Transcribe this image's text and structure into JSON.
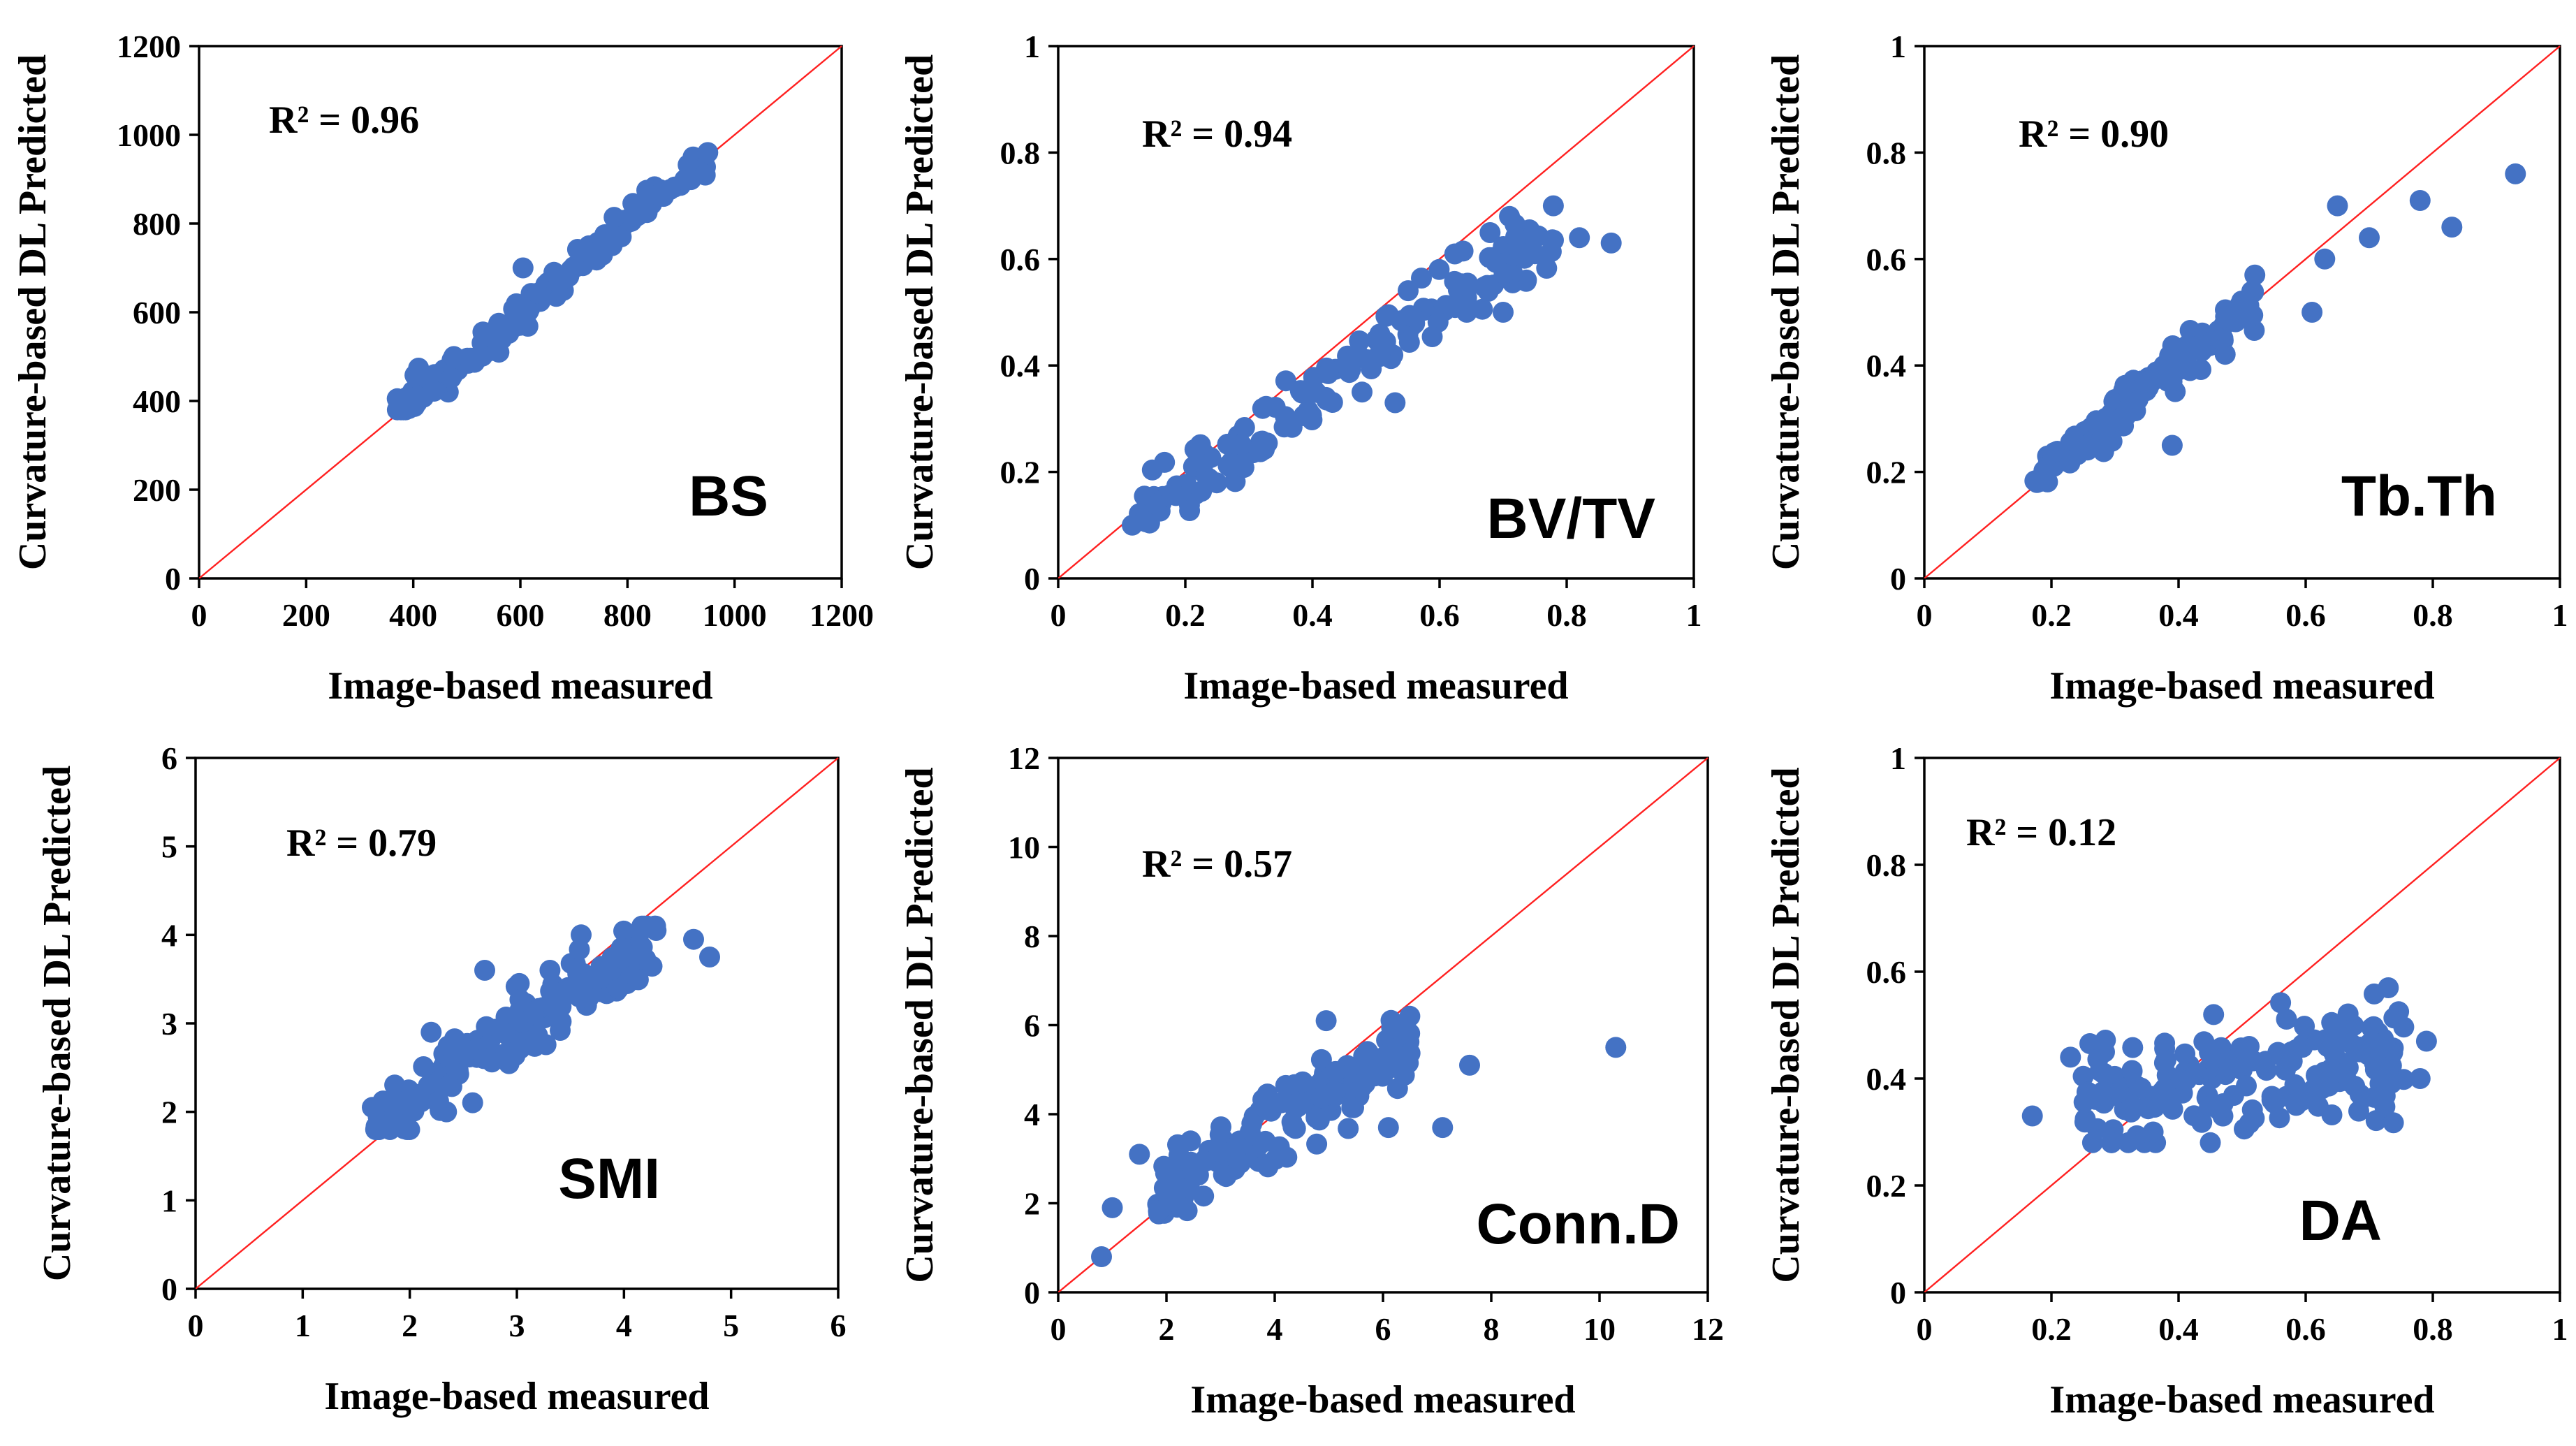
{
  "colors": {
    "points": "#4472c4",
    "reference_line": "#ff2020",
    "axes": "#000000"
  },
  "chart_data": [
    {
      "id": "bs",
      "type": "scatter",
      "panel_label": "BS",
      "r2_label": "R² = 0.96",
      "xlabel": "Image-based measured",
      "ylabel": "Curvature-based DL Predicted",
      "xlim": [
        0,
        1200
      ],
      "ylim": [
        0,
        1200
      ],
      "xticks": [
        "0",
        "200",
        "400",
        "600",
        "800",
        "1000",
        "1200"
      ],
      "yticks": [
        "0",
        "200",
        "400",
        "600",
        "800",
        "1000",
        "1200"
      ],
      "gen": {
        "n": 150,
        "seed": 11,
        "xMin": 370,
        "xMax": 950,
        "slope": 1.0,
        "intercept": 0,
        "noise": 18,
        "yMin": 380,
        "yMax": 980
      },
      "extra_points": [
        [
          950,
          960
        ],
        [
          945,
          910
        ],
        [
          370,
          405
        ],
        [
          605,
          700
        ],
        [
          560,
          510
        ]
      ]
    },
    {
      "id": "bvtv",
      "type": "scatter",
      "panel_label": "BV/TV",
      "r2_label": "R² = 0.94",
      "xlabel": "Image-based measured",
      "ylabel": "Curvature-based DL Predicted",
      "xlim": [
        0,
        1
      ],
      "ylim": [
        0,
        1
      ],
      "xticks": [
        "0",
        "0.2",
        "0.4",
        "0.6",
        "0.8",
        "1"
      ],
      "yticks": [
        "0",
        "0.2",
        "0.4",
        "0.6",
        "0.8",
        "1"
      ],
      "gen": {
        "n": 170,
        "seed": 23,
        "xMin": 0.11,
        "xMax": 0.78,
        "slope": 0.82,
        "intercept": 0.02,
        "noise": 0.03,
        "yMin": 0.1,
        "yMax": 0.7
      },
      "extra_points": [
        [
          0.71,
          0.68
        ],
        [
          0.82,
          0.64
        ],
        [
          0.87,
          0.63
        ],
        [
          0.53,
          0.33
        ],
        [
          0.75,
          0.61
        ],
        [
          0.7,
          0.5
        ]
      ]
    },
    {
      "id": "tbth",
      "type": "scatter",
      "panel_label": "Tb.Th",
      "r2_label": "R² = 0.90",
      "xlabel": "Image-based measured",
      "ylabel": "Curvature-based DL Predicted",
      "xlim": [
        0,
        1
      ],
      "ylim": [
        0,
        1
      ],
      "xticks": [
        "0",
        "0.2",
        "0.4",
        "0.6",
        "0.8",
        "1"
      ],
      "yticks": [
        "0",
        "0.2",
        "0.4",
        "0.6",
        "0.8",
        "1"
      ],
      "gen": {
        "n": 160,
        "seed": 37,
        "xMin": 0.17,
        "xMax": 0.52,
        "slope": 0.95,
        "intercept": 0.02,
        "noise": 0.02,
        "yMin": 0.18,
        "yMax": 0.58
      },
      "extra_points": [
        [
          0.63,
          0.6
        ],
        [
          0.65,
          0.7
        ],
        [
          0.7,
          0.64
        ],
        [
          0.78,
          0.71
        ],
        [
          0.83,
          0.66
        ],
        [
          0.93,
          0.76
        ],
        [
          0.61,
          0.5
        ],
        [
          0.39,
          0.25
        ],
        [
          0.52,
          0.57
        ]
      ]
    },
    {
      "id": "smi",
      "type": "scatter",
      "panel_label": "SMI",
      "r2_label": "R² = 0.79",
      "xlabel": "Image-based measured",
      "ylabel": "Curvature-based DL Predicted",
      "xlim": [
        0,
        6
      ],
      "ylim": [
        0,
        6
      ],
      "xticks": [
        "0",
        "1",
        "2",
        "3",
        "4",
        "5",
        "6"
      ],
      "yticks": [
        "0",
        "1",
        "2",
        "3",
        "4",
        "5",
        "6"
      ],
      "gen": {
        "n": 160,
        "seed": 41,
        "xMin": 1.65,
        "xMax": 4.3,
        "slope": 0.82,
        "intercept": 0.45,
        "noise": 0.2,
        "yMin": 1.8,
        "yMax": 4.1
      },
      "extra_points": [
        [
          4.65,
          3.95
        ],
        [
          4.8,
          3.75
        ],
        [
          4.3,
          4.05
        ],
        [
          3.6,
          4.0
        ],
        [
          2.7,
          3.6
        ],
        [
          1.65,
          2.05
        ],
        [
          2.2,
          2.9
        ]
      ]
    },
    {
      "id": "connd",
      "type": "scatter",
      "panel_label": "Conn.D",
      "r2_label": "R² = 0.57",
      "xlabel": "Image-based measured",
      "ylabel": "Curvature-based DL Predicted",
      "xlim": [
        0,
        12
      ],
      "ylim": [
        0,
        12
      ],
      "xticks": [
        "0",
        "2",
        "4",
        "6",
        "8",
        "10",
        "12"
      ],
      "yticks": [
        "0",
        "2",
        "4",
        "6",
        "8",
        "10",
        "12"
      ],
      "gen": {
        "n": 160,
        "seed": 53,
        "xMin": 1.8,
        "xMax": 6.5,
        "slope": 0.72,
        "intercept": 0.9,
        "noise": 0.38,
        "yMin": 1.4,
        "yMax": 6.2
      },
      "extra_points": [
        [
          10.3,
          5.5
        ],
        [
          0.8,
          0.8
        ],
        [
          1.0,
          1.9
        ],
        [
          1.5,
          3.1
        ],
        [
          4.95,
          6.1
        ],
        [
          7.6,
          5.1
        ],
        [
          7.1,
          3.7
        ],
        [
          6.1,
          3.7
        ],
        [
          6.3,
          5.9
        ]
      ]
    },
    {
      "id": "da",
      "type": "scatter",
      "panel_label": "DA",
      "r2_label": "R² = 0.12",
      "xlabel": "Image-based measured",
      "ylabel": "Curvature-based DL Predicted",
      "xlim": [
        0,
        1
      ],
      "ylim": [
        0,
        1
      ],
      "xticks": [
        "0",
        "0.2",
        "0.4",
        "0.6",
        "0.8",
        "1"
      ],
      "yticks": [
        "0",
        "0.2",
        "0.4",
        "0.6",
        "0.8",
        "1"
      ],
      "gen": {
        "n": 180,
        "seed": 67,
        "xMin": 0.25,
        "xMax": 0.76,
        "slope": 0.14,
        "intercept": 0.33,
        "noise": 0.05,
        "yMin": 0.28,
        "yMax": 0.57
      },
      "extra_points": [
        [
          0.17,
          0.33
        ],
        [
          0.79,
          0.47
        ],
        [
          0.78,
          0.4
        ],
        [
          0.23,
          0.44
        ],
        [
          0.73,
          0.57
        ],
        [
          0.36,
          0.3
        ],
        [
          0.45,
          0.28
        ]
      ]
    }
  ]
}
